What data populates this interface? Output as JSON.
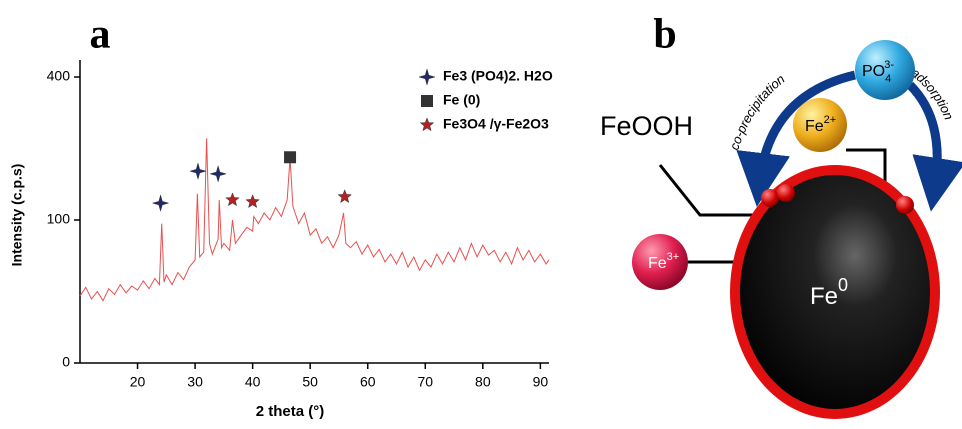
{
  "chart_data": {
    "type": "line",
    "panel_label": "a",
    "ylabel": "Intensity (c.p.s)",
    "xlabel": "2 theta (°)",
    "xlim": [
      10,
      91.5
    ],
    "xticks": [
      20,
      30,
      40,
      50,
      60,
      70,
      80,
      90
    ],
    "ylim": [
      0,
      449
    ],
    "yticks": [
      0,
      100,
      400
    ],
    "yscale": "sqrt",
    "color": "#e8504f",
    "x": [
      10,
      11,
      12,
      13,
      14,
      15,
      16,
      17,
      18,
      19,
      20,
      21,
      22,
      23,
      23.8,
      24.2,
      24.6,
      25,
      26,
      27,
      28,
      29,
      30,
      30.4,
      30.8,
      31.5,
      32,
      32.5,
      33,
      34,
      34.2,
      34.6,
      35,
      36,
      36.5,
      37,
      38,
      39,
      40,
      40.2,
      41,
      42,
      43,
      44,
      45,
      46,
      46.5,
      47,
      48,
      49,
      50,
      51,
      52,
      53,
      54,
      55,
      55.8,
      56.2,
      57,
      58,
      59,
      60,
      61,
      62,
      63,
      64,
      65,
      66,
      67,
      68,
      69,
      70,
      71,
      72,
      73,
      74,
      75,
      76,
      77,
      78,
      79,
      80,
      81,
      82,
      83,
      84,
      85,
      86,
      87,
      88,
      89,
      90,
      91,
      91.5
    ],
    "values": [
      22,
      28,
      20,
      25,
      19,
      27,
      23,
      30,
      24,
      29,
      26,
      33,
      27,
      35,
      30,
      95,
      32,
      38,
      30,
      40,
      34,
      45,
      52,
      140,
      55,
      60,
      247,
      70,
      58,
      75,
      130,
      65,
      70,
      62,
      100,
      70,
      80,
      90,
      85,
      105,
      95,
      110,
      100,
      118,
      105,
      130,
      205,
      120,
      95,
      110,
      80,
      88,
      70,
      78,
      65,
      80,
      110,
      70,
      65,
      72,
      58,
      68,
      55,
      63,
      50,
      58,
      48,
      60,
      45,
      55,
      42,
      52,
      45,
      58,
      48,
      60,
      50,
      65,
      52,
      70,
      55,
      68,
      57,
      62,
      50,
      60,
      48,
      65,
      52,
      62,
      50,
      58,
      48,
      52
    ],
    "series": [
      {
        "name": "Fe3 (PO4)2. H2O",
        "color": "#1f2a6b",
        "marker": "star4",
        "x": [
          24,
          30.5,
          34
        ],
        "values": [
          125,
          180,
          175
        ]
      },
      {
        "name": "Fe (0)",
        "color": "#333333",
        "marker": "square",
        "x": [
          46.5
        ],
        "values": [
          207
        ]
      },
      {
        "name": "Fe3O4 /γ-Fe2O3",
        "color": "#b22222",
        "marker": "star5",
        "x": [
          36.5,
          40,
          56
        ],
        "values": [
          130,
          127,
          135
        ]
      }
    ]
  },
  "panel_b": {
    "panel_label": "b",
    "arrow_left": "co-precipitation",
    "arrow_right": "adsorption",
    "po4": {
      "base": "PO",
      "sub": "4",
      "sup": "3-"
    },
    "fe2": {
      "base": "Fe",
      "sup": "2+"
    },
    "fe3": {
      "base": "Fe",
      "sup": "3+"
    },
    "feooh": "FeOOH",
    "fe0": {
      "base": "Fe",
      "sup": "0"
    }
  }
}
